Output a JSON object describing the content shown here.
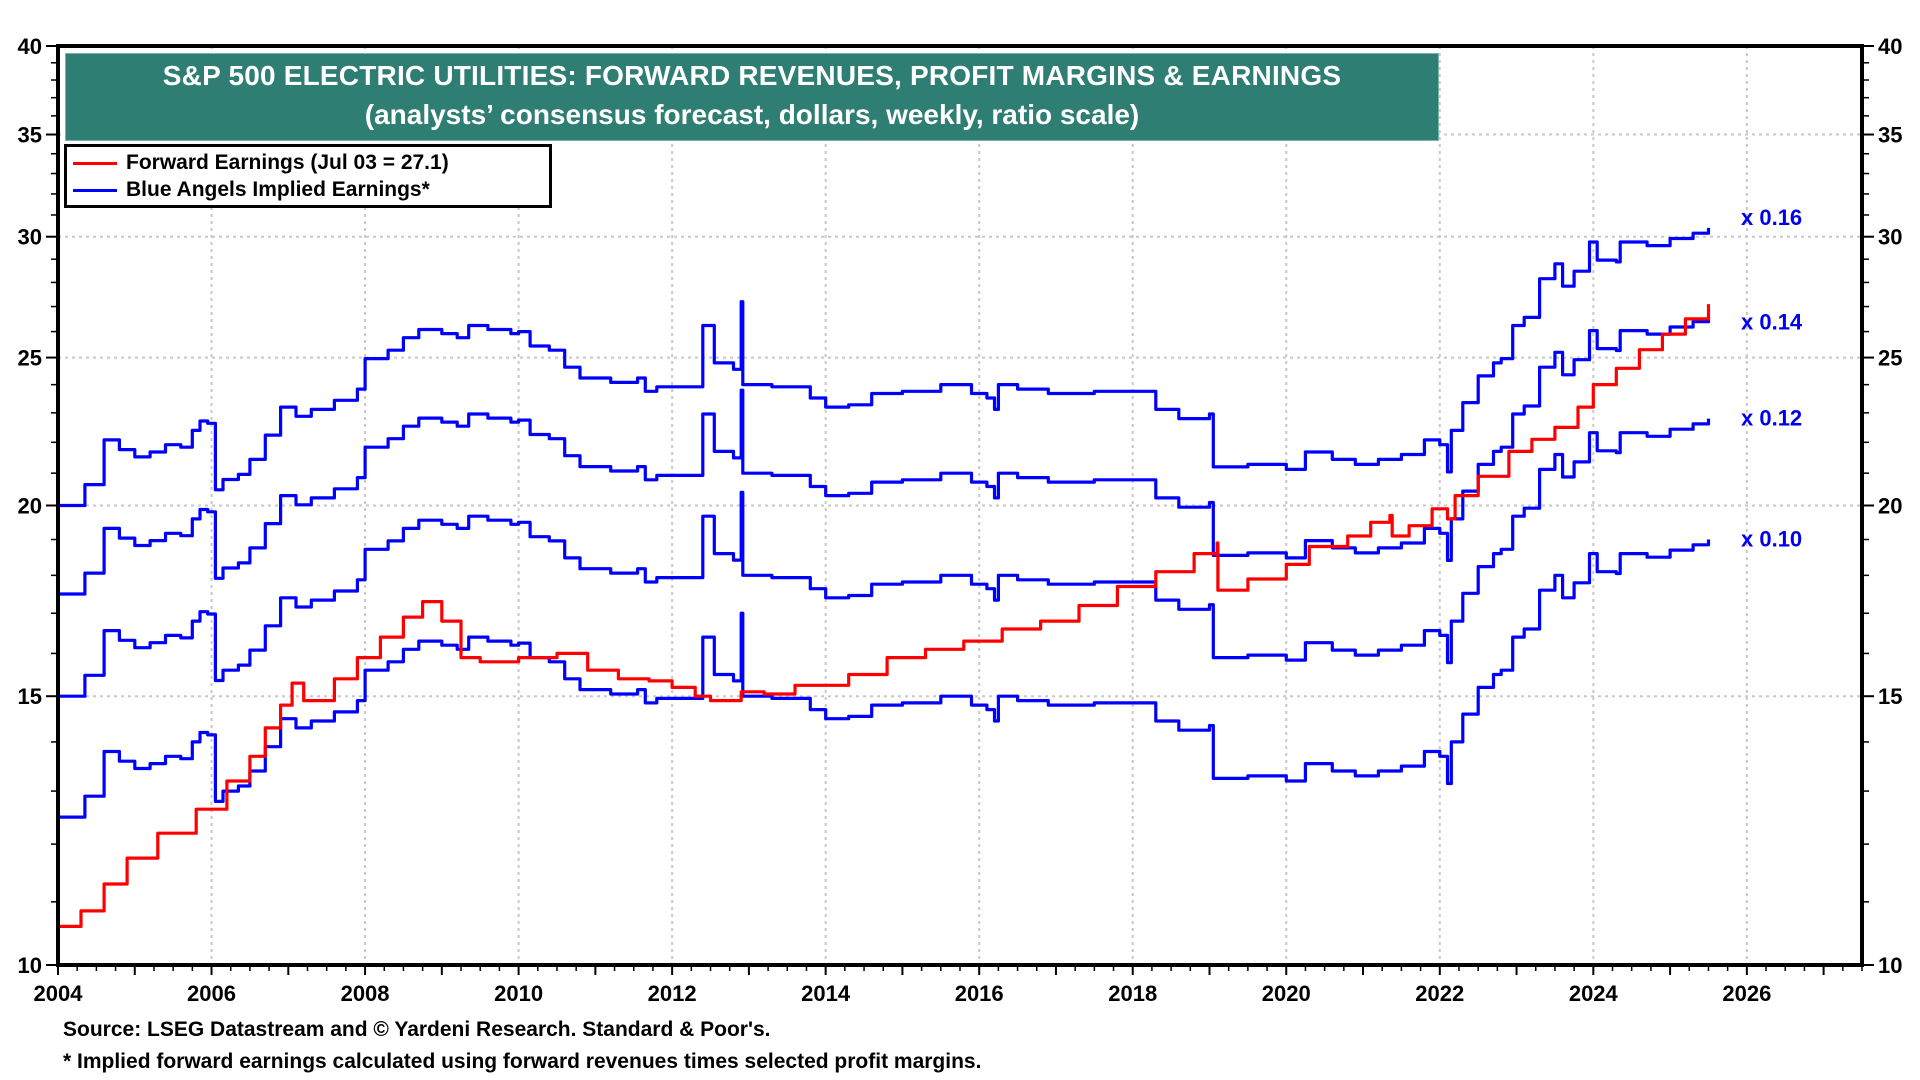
{
  "chart_data": {
    "type": "line",
    "title": "S&P 500 ELECTRIC UTILITIES: FORWARD REVENUES, PROFIT MARGINS & EARNINGS",
    "subtitle": "(analysts’ consensus forecast, dollars, weekly, ratio scale)",
    "xlabel": "",
    "ylabel": "",
    "y_scale": "log",
    "ylim": [
      10,
      40
    ],
    "xlim": [
      2004,
      2027.5
    ],
    "x_ticks": [
      2004,
      2006,
      2008,
      2010,
      2012,
      2014,
      2016,
      2018,
      2020,
      2022,
      2024,
      2026
    ],
    "x_tick_labels": [
      "2004",
      "2006",
      "2008",
      "2010",
      "2012",
      "2014",
      "2016",
      "2018",
      "2020",
      "2022",
      "2024",
      "2026"
    ],
    "y_ticks": [
      10,
      15,
      20,
      25,
      30,
      35,
      40
    ],
    "y_tick_labels": [
      "10",
      "15",
      "20",
      "25",
      "30",
      "35",
      "40"
    ],
    "y_minor_ticks": [
      11,
      12,
      13,
      14,
      16,
      17,
      18,
      19,
      21,
      22,
      23,
      24,
      26,
      27,
      28,
      29,
      31,
      32,
      33,
      34,
      36,
      37,
      38,
      39
    ],
    "grid": true,
    "legend_position": "top-left",
    "legend": [
      {
        "label": "Forward Earnings (Jul 03 = 27.1)",
        "color": "#ff0000"
      },
      {
        "label": "Blue Angels Implied Earnings*",
        "color": "#0000ff"
      }
    ],
    "series": [
      {
        "name": "Forward Earnings",
        "color": "#ff0000",
        "x": [
          2004.0,
          2004.15,
          2004.3,
          2004.6,
          2004.9,
          2005.3,
          2005.8,
          2006.2,
          2006.5,
          2006.7,
          2006.9,
          2007.05,
          2007.2,
          2007.6,
          2007.9,
          2008.2,
          2008.5,
          2008.75,
          2009.0,
          2009.25,
          2009.5,
          2010.0,
          2010.5,
          2010.9,
          2011.3,
          2011.7,
          2012.0,
          2012.3,
          2012.5,
          2012.9,
          2013.2,
          2013.6,
          2014.0,
          2014.3,
          2014.8,
          2015.3,
          2015.8,
          2016.3,
          2016.8,
          2017.3,
          2017.8,
          2018.3,
          2018.8,
          2019.1,
          2019.11,
          2019.5,
          2020.0,
          2020.3,
          2020.8,
          2021.1,
          2021.35,
          2021.38,
          2021.6,
          2021.9,
          2022.1,
          2022.2,
          2022.5,
          2022.9,
          2023.2,
          2023.5,
          2023.8,
          2024.0,
          2024.3,
          2024.6,
          2024.9,
          2025.2,
          2025.5
        ],
        "values": [
          10.6,
          10.6,
          10.85,
          11.3,
          11.75,
          12.2,
          12.65,
          13.2,
          13.7,
          14.3,
          14.8,
          15.3,
          14.9,
          15.4,
          15.9,
          16.4,
          16.9,
          17.3,
          16.8,
          15.9,
          15.8,
          15.9,
          16.0,
          15.6,
          15.4,
          15.35,
          15.2,
          15.0,
          14.9,
          15.1,
          15.05,
          15.25,
          15.25,
          15.5,
          15.9,
          16.1,
          16.3,
          16.6,
          16.8,
          17.2,
          17.7,
          18.1,
          18.6,
          18.9,
          17.6,
          17.9,
          18.3,
          18.8,
          19.1,
          19.5,
          19.7,
          19.1,
          19.4,
          19.9,
          19.6,
          20.3,
          20.9,
          21.7,
          22.1,
          22.5,
          23.2,
          24.0,
          24.6,
          25.3,
          25.9,
          26.5,
          27.1
        ]
      },
      {
        "name": "Blue Angels Implied Earnings x 0.10",
        "margin": 0.1,
        "color": "#0000ff",
        "x": [
          2004.0,
          2004.3,
          2004.35,
          2004.55,
          2004.6,
          2004.8,
          2005.0,
          2005.2,
          2005.4,
          2005.6,
          2005.75,
          2005.85,
          2005.95,
          2006.05,
          2006.15,
          2006.35,
          2006.5,
          2006.7,
          2006.9,
          2007.1,
          2007.3,
          2007.6,
          2007.9,
          2008.0,
          2008.3,
          2008.5,
          2008.7,
          2009.0,
          2009.2,
          2009.35,
          2009.6,
          2009.9,
          2010.0,
          2010.15,
          2010.4,
          2010.6,
          2010.8,
          2011.2,
          2011.55,
          2011.65,
          2011.8,
          2012.1,
          2012.35,
          2012.4,
          2012.55,
          2012.8,
          2012.9,
          2012.92,
          2013.3,
          2013.8,
          2014.0,
          2014.3,
          2014.6,
          2015.0,
          2015.5,
          2015.9,
          2016.1,
          2016.2,
          2016.25,
          2016.5,
          2016.9,
          2017.5,
          2018.0,
          2018.3,
          2018.6,
          2019.0,
          2019.05,
          2019.5,
          2020.0,
          2020.2,
          2020.25,
          2020.6,
          2020.9,
          2021.2,
          2021.5,
          2021.7,
          2021.8,
          2022.0,
          2022.1,
          2022.15,
          2022.3,
          2022.5,
          2022.7,
          2022.8,
          2022.95,
          2023.1,
          2023.3,
          2023.5,
          2023.6,
          2023.75,
          2023.95,
          2024.05,
          2024.3,
          2024.35,
          2024.7,
          2025.0,
          2025.3,
          2025.5
        ],
        "values": [
          12.5,
          12.5,
          12.9,
          12.9,
          13.8,
          13.6,
          13.45,
          13.55,
          13.7,
          13.65,
          14.0,
          14.2,
          14.15,
          12.8,
          13.0,
          13.1,
          13.4,
          13.9,
          14.5,
          14.3,
          14.45,
          14.65,
          14.9,
          15.6,
          15.8,
          16.1,
          16.3,
          16.2,
          16.1,
          16.4,
          16.3,
          16.2,
          16.25,
          15.9,
          15.8,
          15.4,
          15.15,
          15.05,
          15.15,
          14.85,
          14.95,
          14.95,
          14.95,
          16.4,
          15.5,
          15.35,
          17.0,
          15.0,
          14.95,
          14.7,
          14.5,
          14.55,
          14.8,
          14.85,
          15.0,
          14.8,
          14.7,
          14.45,
          15.0,
          14.9,
          14.8,
          14.85,
          14.85,
          14.45,
          14.25,
          14.35,
          13.25,
          13.3,
          13.2,
          13.2,
          13.55,
          13.4,
          13.3,
          13.4,
          13.5,
          13.5,
          13.8,
          13.7,
          13.15,
          14.0,
          14.6,
          15.2,
          15.5,
          15.6,
          16.4,
          16.6,
          17.6,
          18.0,
          17.4,
          17.8,
          18.6,
          18.1,
          18.05,
          18.6,
          18.5,
          18.7,
          18.85,
          19.0
        ]
      },
      {
        "name": "Blue Angels Implied Earnings x 0.12",
        "margin": 0.12,
        "color": "#0000ff",
        "derived_from": "x 0.10",
        "scale": 1.2
      },
      {
        "name": "Blue Angels Implied Earnings x 0.14",
        "margin": 0.14,
        "color": "#0000ff",
        "derived_from": "x 0.10",
        "scale": 1.4
      },
      {
        "name": "Blue Angels Implied Earnings x 0.16",
        "margin": 0.16,
        "color": "#0000ff",
        "derived_from": "x 0.10",
        "scale": 1.6
      }
    ],
    "annotations": [
      {
        "text": "x 0.16",
        "series": "Blue Angels Implied Earnings x 0.16"
      },
      {
        "text": "x 0.14",
        "series": "Blue Angels Implied Earnings x 0.14"
      },
      {
        "text": "x 0.12",
        "series": "Blue Angels Implied Earnings x 0.12"
      },
      {
        "text": "x 0.10",
        "series": "Blue Angels Implied Earnings x 0.10"
      }
    ]
  },
  "header": {
    "title": "S&P 500 ELECTRIC UTILITIES: FORWARD REVENUES, PROFIT MARGINS & EARNINGS",
    "subtitle": "(analysts’ consensus forecast, dollars, weekly, ratio scale)",
    "background_color": "#2f7e73"
  },
  "legend": {
    "items": [
      {
        "label": "Forward Earnings (Jul 03 = 27.1)",
        "color": "#ff0000"
      },
      {
        "label": "Blue Angels Implied Earnings*",
        "color": "#0000ff"
      }
    ]
  },
  "footer": {
    "source": "Source: LSEG Datastream and © Yardeni Research. Standard & Poor's.",
    "note": "* Implied forward earnings calculated using forward revenues times selected profit margins."
  }
}
